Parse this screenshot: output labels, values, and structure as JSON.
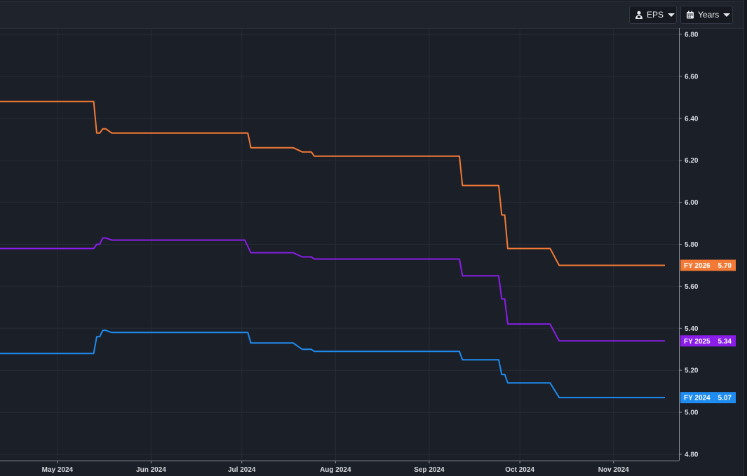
{
  "toolbar": {
    "metric_label": "EPS",
    "metric_icon": "analyst-icon",
    "period_label": "Years",
    "period_icon": "calendar-icon"
  },
  "chart_data": {
    "type": "line",
    "title": "",
    "xlabel": "",
    "ylabel": "",
    "x_ticks": [
      "May 2024",
      "Jun 2024",
      "Jul 2024",
      "Aug 2024",
      "Sep 2024",
      "Oct 2024",
      "Nov 2024"
    ],
    "y_ticks": [
      "6.80",
      "6.60",
      "6.40",
      "6.20",
      "6.00",
      "5.80",
      "5.60",
      "5.40",
      "5.20",
      "5.00",
      "4.80"
    ],
    "ylim": [
      4.73,
      6.8
    ],
    "xlim": [
      "2024-04-12",
      "2024-11-20"
    ],
    "grid": true,
    "series": [
      {
        "name": "FY 2026",
        "color": "#f27a36",
        "last_value_label": "5.70",
        "points": [
          [
            "2024-04-12",
            6.48
          ],
          [
            "2024-05-13",
            6.48
          ],
          [
            "2024-05-14",
            6.33
          ],
          [
            "2024-05-15",
            6.33
          ],
          [
            "2024-05-16",
            6.35
          ],
          [
            "2024-05-17",
            6.35
          ],
          [
            "2024-05-19",
            6.33
          ],
          [
            "2024-07-03",
            6.33
          ],
          [
            "2024-07-04",
            6.26
          ],
          [
            "2024-07-18",
            6.26
          ],
          [
            "2024-07-21",
            6.24
          ],
          [
            "2024-07-24",
            6.24
          ],
          [
            "2024-07-25",
            6.22
          ],
          [
            "2024-09-11",
            6.22
          ],
          [
            "2024-09-12",
            6.08
          ],
          [
            "2024-09-24",
            6.08
          ],
          [
            "2024-09-25",
            5.94
          ],
          [
            "2024-09-26",
            5.94
          ],
          [
            "2024-09-27",
            5.78
          ],
          [
            "2024-10-11",
            5.78
          ],
          [
            "2024-10-14",
            5.7
          ],
          [
            "2024-11-18",
            5.7
          ]
        ]
      },
      {
        "name": "FY 2025",
        "color": "#8a1ee8",
        "last_value_label": "5.34",
        "points": [
          [
            "2024-04-12",
            5.78
          ],
          [
            "2024-05-13",
            5.78
          ],
          [
            "2024-05-14",
            5.8
          ],
          [
            "2024-05-15",
            5.8
          ],
          [
            "2024-05-16",
            5.83
          ],
          [
            "2024-05-17",
            5.83
          ],
          [
            "2024-05-19",
            5.82
          ],
          [
            "2024-07-02",
            5.82
          ],
          [
            "2024-07-04",
            5.76
          ],
          [
            "2024-07-18",
            5.76
          ],
          [
            "2024-07-21",
            5.74
          ],
          [
            "2024-07-24",
            5.74
          ],
          [
            "2024-07-25",
            5.73
          ],
          [
            "2024-09-11",
            5.73
          ],
          [
            "2024-09-12",
            5.65
          ],
          [
            "2024-09-24",
            5.65
          ],
          [
            "2024-09-25",
            5.54
          ],
          [
            "2024-09-26",
            5.54
          ],
          [
            "2024-09-27",
            5.42
          ],
          [
            "2024-10-11",
            5.42
          ],
          [
            "2024-10-14",
            5.34
          ],
          [
            "2024-11-18",
            5.34
          ]
        ]
      },
      {
        "name": "FY 2024",
        "color": "#1f8cf0",
        "last_value_label": "5.07",
        "points": [
          [
            "2024-04-12",
            5.28
          ],
          [
            "2024-05-13",
            5.28
          ],
          [
            "2024-05-14",
            5.36
          ],
          [
            "2024-05-15",
            5.36
          ],
          [
            "2024-05-16",
            5.39
          ],
          [
            "2024-05-17",
            5.39
          ],
          [
            "2024-05-19",
            5.38
          ],
          [
            "2024-07-03",
            5.38
          ],
          [
            "2024-07-04",
            5.33
          ],
          [
            "2024-07-18",
            5.33
          ],
          [
            "2024-07-21",
            5.3
          ],
          [
            "2024-07-24",
            5.3
          ],
          [
            "2024-07-25",
            5.29
          ],
          [
            "2024-09-11",
            5.29
          ],
          [
            "2024-09-12",
            5.25
          ],
          [
            "2024-09-24",
            5.25
          ],
          [
            "2024-09-25",
            5.18
          ],
          [
            "2024-09-26",
            5.18
          ],
          [
            "2024-09-27",
            5.14
          ],
          [
            "2024-10-11",
            5.14
          ],
          [
            "2024-10-14",
            5.07
          ],
          [
            "2024-11-18",
            5.07
          ]
        ]
      }
    ]
  }
}
